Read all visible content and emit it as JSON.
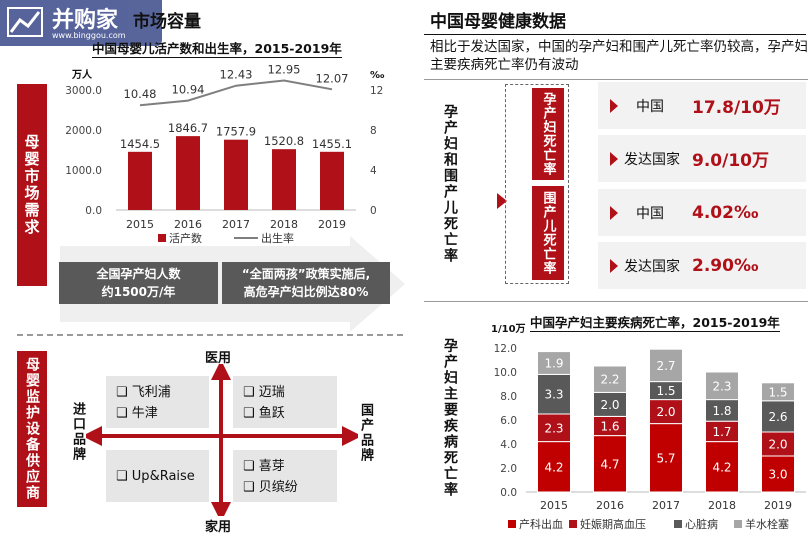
{
  "watermark": {
    "brand": "并购家",
    "site": "www.binggou.com"
  },
  "left": {
    "header_title": "市场容量",
    "chart_title": "中国母婴儿活产数和出生率，2015-2019年",
    "market_label": "母婴市场需求",
    "info_boxes": [
      {
        "line1": "全国孕产妇人数",
        "line2": "约1500万/年"
      },
      {
        "line1": "“全面两孩”政策实施后,",
        "line2": "高危孕产妇比例达80%"
      }
    ],
    "brand_label": "母婴监护设备供应商",
    "axes": {
      "top": "医用",
      "bottom": "家用",
      "left": "进口品牌",
      "right": "国产品牌"
    },
    "quadrants": {
      "tl": [
        "飞利浦",
        "牛津"
      ],
      "tr": [
        "迈瑞",
        "鱼跃"
      ],
      "bl": [
        "Up&Raise"
      ],
      "br": [
        "喜芽",
        "贝缤纷"
      ]
    }
  },
  "right": {
    "header_title": "中国母婴健康数据",
    "intro": "相比于发达国家，中国的孕产妇和围产儿死亡率仍较高，孕产妇主要疾病死亡率仍有波动",
    "section1_label": "孕产妇和围产儿死亡率",
    "rate_labels": [
      "孕产妇死亡率",
      "围产儿死亡率"
    ],
    "stats": [
      {
        "label": "中国",
        "value": "17.8/10万"
      },
      {
        "label": "发达国家",
        "value": "9.0/10万"
      },
      {
        "label": "中国",
        "value": "4.02‰"
      },
      {
        "label": "发达国家",
        "value": "2.90‰"
      }
    ],
    "section2_label": "孕产妇主要疾病死亡率",
    "chart_title": "中国孕产妇主要疾病死亡率，2015-2019年"
  },
  "chart_data": [
    {
      "type": "bar",
      "title": "中国母婴儿活产数和出生率，2015-2019年",
      "categories": [
        "2015",
        "2016",
        "2017",
        "2018",
        "2019"
      ],
      "y_left_unit": "万人",
      "y_right_unit": "‰",
      "y_left_ticks": [
        "0.0",
        "1000.0",
        "2000.0",
        "3000.0"
      ],
      "y_right_ticks": [
        "0",
        "4",
        "8",
        "12"
      ],
      "ylim": [
        0,
        3000
      ],
      "ylim_right": [
        0,
        12
      ],
      "series": [
        {
          "name": "活产数",
          "type": "bar",
          "values": [
            1454.5,
            1846.7,
            1757.9,
            1520.8,
            1455.1
          ],
          "labels": [
            "1454.5",
            "1846.7",
            "1757.9",
            "1520.8",
            "1455.1"
          ],
          "color": "#b01018"
        },
        {
          "name": "出生率",
          "type": "line",
          "axis": "right",
          "values": [
            10.48,
            10.94,
            12.43,
            12.95,
            12.07
          ],
          "labels": [
            "10.48",
            "10.94",
            "12.43",
            "12.95",
            "12.07"
          ],
          "color": "#7f7f7f"
        }
      ],
      "legend": "bottom",
      "grid": false
    },
    {
      "type": "bar",
      "stacked": true,
      "title": "中国孕产妇主要疾病死亡率，2015-2019年",
      "ylabel": "1/10万",
      "categories": [
        "2015",
        "2016",
        "2017",
        "2018",
        "2019"
      ],
      "ylim": [
        0,
        12
      ],
      "y_ticks": [
        "0.0",
        "2.0",
        "4.0",
        "6.0",
        "8.0",
        "10.0",
        "12.0"
      ],
      "series": [
        {
          "name": "产科出血",
          "values": [
            4.2,
            4.7,
            5.7,
            4.2,
            3.0
          ],
          "labels": [
            "4.2",
            "4.7",
            "5.7",
            "4.2",
            "3.0"
          ],
          "color": "#c00000"
        },
        {
          "name": "妊娠期高血压",
          "values": [
            2.3,
            1.6,
            2.0,
            1.7,
            2.0
          ],
          "labels": [
            "2.3",
            "1.6",
            "2.0",
            "1.7",
            "2.0"
          ],
          "color": "#b01018"
        },
        {
          "name": "心脏病",
          "values": [
            3.3,
            2.0,
            1.5,
            1.8,
            2.6
          ],
          "labels": [
            "3.3",
            "2.0",
            "1.5",
            "1.8",
            "2.6"
          ],
          "color": "#595959"
        },
        {
          "name": "羊水栓塞",
          "values": [
            1.9,
            2.2,
            2.7,
            2.3,
            1.5
          ],
          "labels": [
            "1.9",
            "2.2",
            "2.7",
            "2.3",
            "1.5"
          ],
          "color": "#a6a6a6"
        }
      ],
      "legend": "bottom",
      "grid": false
    }
  ]
}
